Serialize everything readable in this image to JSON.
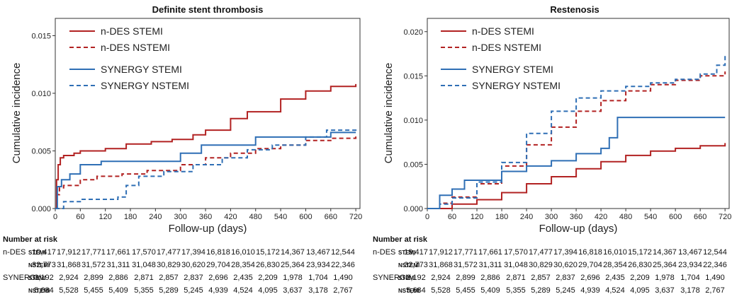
{
  "colors": {
    "n_des": "#b22222",
    "synergy": "#2f6fb5",
    "axis": "#333333"
  },
  "chart_data": [
    {
      "type": "line",
      "title": "Definite stent thrombosis",
      "xlabel": "Follow-up (days)",
      "ylabel": "Cumulative incidence",
      "xlim": [
        0,
        730
      ],
      "ylim": [
        0,
        0.0165
      ],
      "x_ticks": [
        0,
        60,
        120,
        180,
        240,
        300,
        360,
        420,
        480,
        540,
        600,
        660,
        720
      ],
      "y_ticks": [
        0,
        0.005,
        0.01,
        0.015
      ],
      "y_tick_labels": [
        "0.000",
        "0.005",
        "0.010",
        "0.015"
      ],
      "legend_position": "top-left",
      "series": [
        {
          "name": "n-DES STEMI",
          "color_key": "n_des",
          "dash": "solid",
          "points": [
            [
              0,
              0
            ],
            [
              3,
              0.0025
            ],
            [
              7,
              0.0038
            ],
            [
              12,
              0.0044
            ],
            [
              20,
              0.0046
            ],
            [
              45,
              0.0048
            ],
            [
              60,
              0.005
            ],
            [
              120,
              0.0052
            ],
            [
              170,
              0.0056
            ],
            [
              230,
              0.0058
            ],
            [
              280,
              0.006
            ],
            [
              330,
              0.0064
            ],
            [
              360,
              0.0068
            ],
            [
              420,
              0.0078
            ],
            [
              460,
              0.0084
            ],
            [
              540,
              0.0095
            ],
            [
              600,
              0.0102
            ],
            [
              660,
              0.0106
            ],
            [
              720,
              0.0108
            ]
          ]
        },
        {
          "name": "n-DES NSTEMI",
          "color_key": "n_des",
          "dash": "dashed",
          "points": [
            [
              0,
              0
            ],
            [
              4,
              0.0012
            ],
            [
              10,
              0.0018
            ],
            [
              20,
              0.002
            ],
            [
              60,
              0.0025
            ],
            [
              100,
              0.0028
            ],
            [
              160,
              0.003
            ],
            [
              220,
              0.0033
            ],
            [
              300,
              0.0038
            ],
            [
              360,
              0.0044
            ],
            [
              420,
              0.0048
            ],
            [
              480,
              0.0052
            ],
            [
              540,
              0.0055
            ],
            [
              600,
              0.0059
            ],
            [
              660,
              0.0061
            ],
            [
              720,
              0.0064
            ]
          ]
        },
        {
          "name": "SYNERGY STEMI",
          "color_key": "synergy",
          "dash": "solid",
          "points": [
            [
              0,
              0
            ],
            [
              5,
              0.0019
            ],
            [
              15,
              0.0025
            ],
            [
              35,
              0.003
            ],
            [
              60,
              0.0038
            ],
            [
              110,
              0.0041
            ],
            [
              180,
              0.0041
            ],
            [
              300,
              0.0048
            ],
            [
              350,
              0.0055
            ],
            [
              420,
              0.0055
            ],
            [
              480,
              0.0062
            ],
            [
              540,
              0.0062
            ],
            [
              600,
              0.0062
            ],
            [
              660,
              0.0066
            ],
            [
              720,
              0.0066
            ]
          ]
        },
        {
          "name": "SYNERGY NSTEMI",
          "color_key": "synergy",
          "dash": "dashed",
          "points": [
            [
              0,
              0
            ],
            [
              20,
              0.0006
            ],
            [
              60,
              0.0008
            ],
            [
              150,
              0.001
            ],
            [
              170,
              0.002
            ],
            [
              200,
              0.0028
            ],
            [
              260,
              0.0032
            ],
            [
              330,
              0.0038
            ],
            [
              400,
              0.0044
            ],
            [
              460,
              0.0051
            ],
            [
              520,
              0.0055
            ],
            [
              600,
              0.0062
            ],
            [
              650,
              0.0068
            ],
            [
              720,
              0.0069
            ]
          ]
        }
      ]
    },
    {
      "type": "line",
      "title": "Restenosis",
      "xlabel": "Follow-up (days)",
      "ylabel": "Cumulative incidence",
      "xlim": [
        0,
        730
      ],
      "ylim": [
        0,
        0.0215
      ],
      "x_ticks": [
        0,
        60,
        120,
        180,
        240,
        300,
        360,
        420,
        480,
        540,
        600,
        660,
        720
      ],
      "y_ticks": [
        0,
        0.005,
        0.01,
        0.015,
        0.02
      ],
      "y_tick_labels": [
        "0.000",
        "0.005",
        "0.010",
        "0.015",
        "0.020"
      ],
      "legend_position": "top-left",
      "series": [
        {
          "name": "n-DES STEMI",
          "color_key": "n_des",
          "dash": "solid",
          "points": [
            [
              0,
              0
            ],
            [
              60,
              0.0005
            ],
            [
              120,
              0.001
            ],
            [
              180,
              0.0018
            ],
            [
              240,
              0.0028
            ],
            [
              300,
              0.0036
            ],
            [
              360,
              0.0045
            ],
            [
              420,
              0.0053
            ],
            [
              480,
              0.006
            ],
            [
              540,
              0.0065
            ],
            [
              600,
              0.0068
            ],
            [
              660,
              0.0071
            ],
            [
              720,
              0.0074
            ]
          ]
        },
        {
          "name": "n-DES NSTEMI",
          "color_key": "n_des",
          "dash": "dashed",
          "points": [
            [
              0,
              0
            ],
            [
              30,
              0.0006
            ],
            [
              60,
              0.0013
            ],
            [
              120,
              0.0028
            ],
            [
              180,
              0.0048
            ],
            [
              240,
              0.0072
            ],
            [
              300,
              0.0092
            ],
            [
              360,
              0.011
            ],
            [
              420,
              0.0122
            ],
            [
              480,
              0.0133
            ],
            [
              540,
              0.014
            ],
            [
              600,
              0.0145
            ],
            [
              660,
              0.015
            ],
            [
              720,
              0.0155
            ]
          ]
        },
        {
          "name": "SYNERGY STEMI",
          "color_key": "synergy",
          "dash": "solid",
          "points": [
            [
              0,
              0
            ],
            [
              30,
              0.0015
            ],
            [
              60,
              0.0022
            ],
            [
              90,
              0.0032
            ],
            [
              150,
              0.0032
            ],
            [
              180,
              0.0042
            ],
            [
              240,
              0.0048
            ],
            [
              300,
              0.0054
            ],
            [
              360,
              0.0062
            ],
            [
              420,
              0.0068
            ],
            [
              440,
              0.008
            ],
            [
              460,
              0.0103
            ],
            [
              720,
              0.0103
            ]
          ]
        },
        {
          "name": "SYNERGY NSTEMI",
          "color_key": "synergy",
          "dash": "dashed",
          "points": [
            [
              0,
              0
            ],
            [
              30,
              0.0005
            ],
            [
              60,
              0.0012
            ],
            [
              120,
              0.003
            ],
            [
              180,
              0.0052
            ],
            [
              240,
              0.0085
            ],
            [
              300,
              0.011
            ],
            [
              360,
              0.0125
            ],
            [
              420,
              0.0133
            ],
            [
              480,
              0.0138
            ],
            [
              540,
              0.0142
            ],
            [
              600,
              0.0146
            ],
            [
              660,
              0.0152
            ],
            [
              700,
              0.0162
            ],
            [
              720,
              0.0174
            ]
          ]
        }
      ]
    }
  ],
  "risk_table": {
    "header": "Number at risk",
    "rows": [
      {
        "group": "n-DES",
        "subgroup": "STEMI",
        "values": [
          "19,417",
          "17,912",
          "17,771",
          "17,661",
          "17,570",
          "17,477",
          "17,394",
          "16,818",
          "16,010",
          "15,172",
          "14,367",
          "13,467",
          "12,544"
        ]
      },
      {
        "group": "",
        "subgroup": "NSTEMI",
        "values": [
          "32,773",
          "31,868",
          "31,572",
          "31,311",
          "31,048",
          "30,829",
          "30,620",
          "29,704",
          "28,354",
          "26,830",
          "25,364",
          "23,934",
          "22,346"
        ]
      },
      {
        "group": "SYNERGY",
        "subgroup": "STEMI",
        "values": [
          "3,192",
          "2,924",
          "2,899",
          "2,886",
          "2,871",
          "2,857",
          "2,837",
          "2,696",
          "2,435",
          "2,209",
          "1,978",
          "1,704",
          "1,490"
        ]
      },
      {
        "group": "",
        "subgroup": "NSTEMI",
        "values": [
          "5,684",
          "5,528",
          "5,455",
          "5,409",
          "5,355",
          "5,289",
          "5,245",
          "4,939",
          "4,524",
          "4,095",
          "3,637",
          "3,178",
          "2,767"
        ]
      }
    ]
  }
}
